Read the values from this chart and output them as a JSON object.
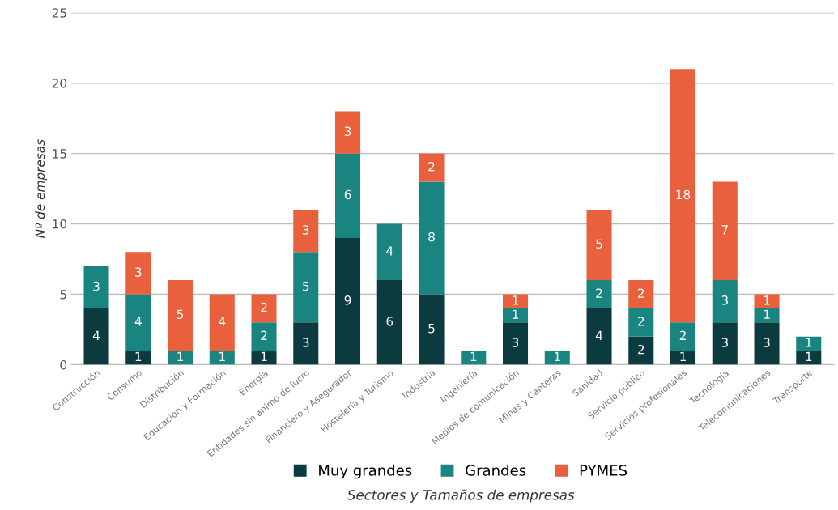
{
  "chart_data": {
    "type": "bar",
    "stacked": true,
    "xlabel": "Sectores y Tamaños de empresas",
    "ylabel": "Nº de empresas",
    "categories": [
      "Construcción",
      "Consumo",
      "Distribución",
      "Educación y Formación",
      "Energía",
      "Entidades sin ánimo de lucro",
      "Financiero y Asegurador",
      "Hostelería y Turismo",
      "Industria",
      "Ingeniería",
      "Medios de comunicación",
      "Minas y Canteras",
      "Sanidad",
      "Servicio público",
      "Servicios profesionales",
      "Tecnología",
      "Telecomunicaciones",
      "Transporte"
    ],
    "series": [
      {
        "name": "Muy grandes",
        "color": "#0b3b3f",
        "values": [
          4,
          1,
          null,
          null,
          1,
          3,
          9,
          6,
          5,
          null,
          3,
          null,
          4,
          2,
          1,
          3,
          3,
          1
        ]
      },
      {
        "name": "Grandes",
        "color": "#1a8580",
        "values": [
          3,
          4,
          1,
          1,
          2,
          5,
          6,
          4,
          8,
          1,
          1,
          1,
          2,
          2,
          2,
          3,
          1,
          1
        ]
      },
      {
        "name": "PYMES",
        "color": "#e8603c",
        "values": [
          null,
          3,
          5,
          4,
          2,
          3,
          3,
          null,
          2,
          null,
          1,
          null,
          5,
          2,
          18,
          7,
          1,
          null
        ]
      }
    ],
    "ylim": [
      0,
      25
    ],
    "yticks": [
      0,
      5,
      10,
      15,
      20,
      25
    ],
    "grid": "y",
    "legend": "bottom",
    "data_labels": true
  }
}
